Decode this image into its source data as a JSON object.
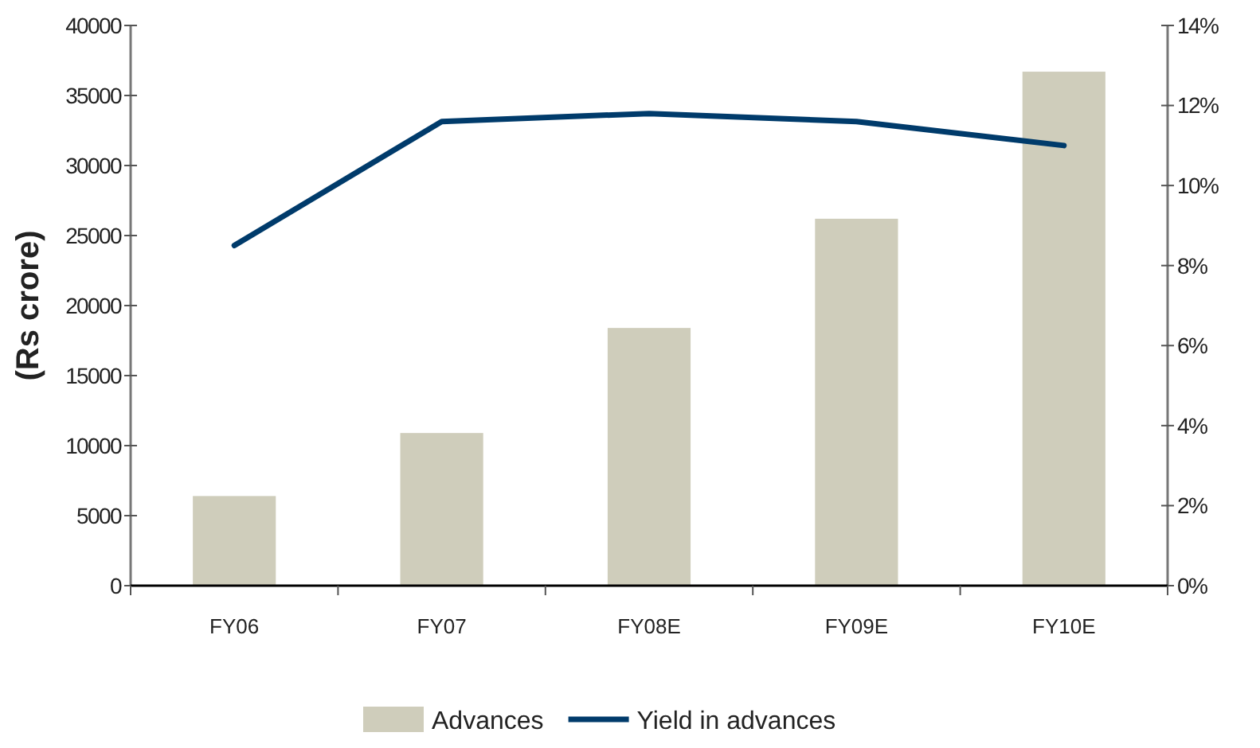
{
  "chart_data": {
    "type": "bar",
    "categories": [
      "FY06",
      "FY07",
      "FY08E",
      "FY09E",
      "FY10E"
    ],
    "ylabel": "(Rs crore)",
    "series": [
      {
        "name": "Advances",
        "color": "#cfcdbb",
        "values": [
          6400,
          10900,
          18400,
          26200,
          36700
        ]
      },
      {
        "name": "Yield in advances",
        "type": "line",
        "axis": "y2",
        "color": "#003b6b",
        "values": [
          8.5,
          11.6,
          11.8,
          11.6,
          11.0
        ]
      }
    ],
    "ylim": [
      0,
      40000
    ],
    "yticks": [
      0,
      5000,
      10000,
      15000,
      20000,
      25000,
      30000,
      35000,
      40000
    ],
    "y2lim": [
      0,
      14
    ],
    "y2ticks": [
      {
        "value": 0,
        "label": "0%"
      },
      {
        "value": 2,
        "label": "2%"
      },
      {
        "value": 4,
        "label": "4%"
      },
      {
        "value": 6,
        "label": "6%"
      },
      {
        "value": 8,
        "label": "8%"
      },
      {
        "value": 10,
        "label": "10%"
      },
      {
        "value": 12,
        "label": "12%"
      },
      {
        "value": 14,
        "label": "14%"
      }
    ],
    "grid": false,
    "legend": "bottom",
    "marker": "none",
    "line_style": "solid"
  }
}
